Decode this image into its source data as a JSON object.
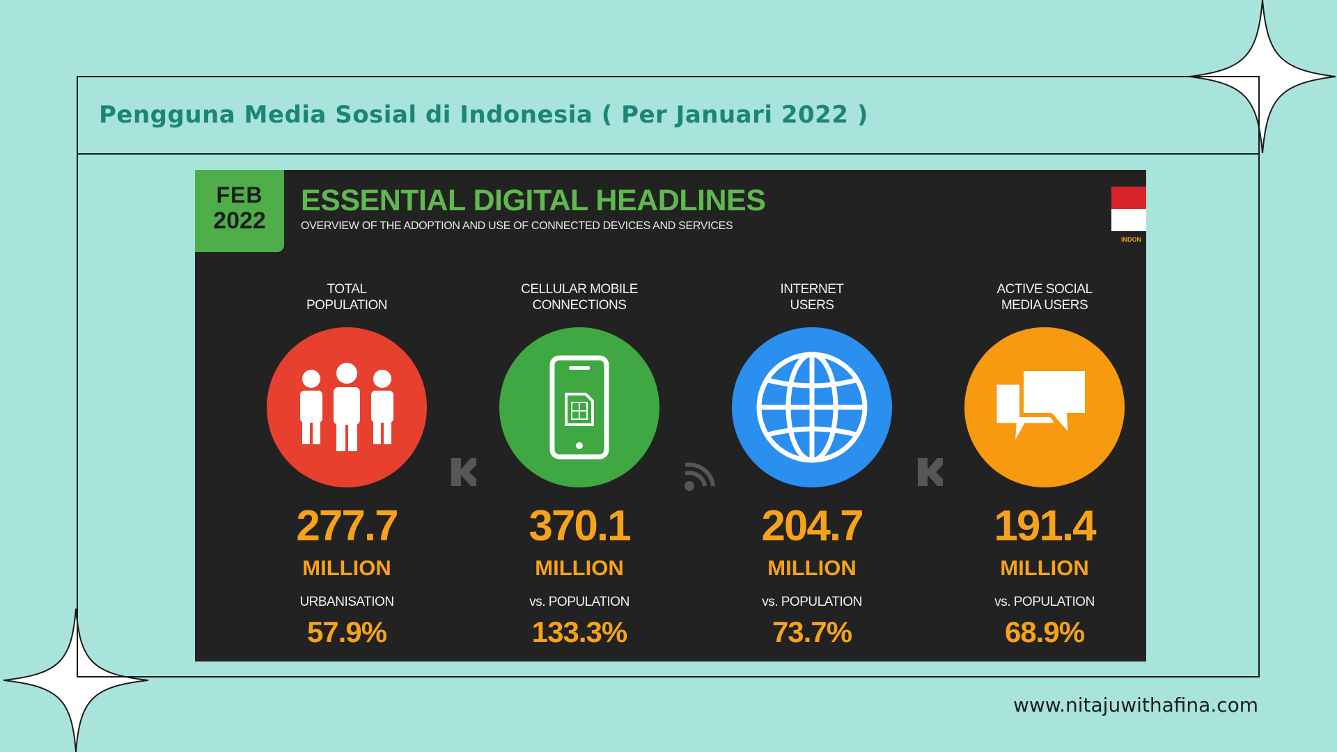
{
  "page_title": "Pengguna Media Sosial di Indonesia ( Per Januari 2022 )",
  "website": "www.nitajuwithafina.com",
  "infographic": {
    "date_month": "FEB",
    "date_year": "2022",
    "headline": "ESSENTIAL DIGITAL HEADLINES",
    "subheadline": "OVERVIEW OF THE ADOPTION AND USE OF CONNECTED DEVICES AND SERVICES",
    "flag_label": "INDON",
    "stats": [
      {
        "label_line1": "TOTAL",
        "label_line2": "POPULATION",
        "icon": "people-icon",
        "color": "#e8402f",
        "value": "277.7",
        "unit": "MILLION",
        "sub_label": "URBANISATION",
        "percent": "57.9%"
      },
      {
        "label_line1": "CELLULAR MOBILE",
        "label_line2": "CONNECTIONS",
        "icon": "mobile-phone-icon",
        "color": "#3fa842",
        "value": "370.1",
        "unit": "MILLION",
        "sub_label": "vs. POPULATION",
        "percent": "133.3%"
      },
      {
        "label_line1": "INTERNET",
        "label_line2": "USERS",
        "icon": "globe-icon",
        "color": "#2b8ff0",
        "value": "204.7",
        "unit": "MILLION",
        "sub_label": "vs. POPULATION",
        "percent": "73.7%"
      },
      {
        "label_line1": "ACTIVE SOCIAL",
        "label_line2": "MEDIA USERS",
        "icon": "chat-bubbles-icon",
        "color": "#f79a0f",
        "value": "191.4",
        "unit": "MILLION",
        "sub_label": "vs. POPULATION",
        "percent": "68.9%"
      }
    ]
  },
  "colors": {
    "background": "#a8e4dc",
    "title": "#1d8478",
    "panel": "#222222",
    "accent_green": "#4fae4a",
    "value_orange": "#f7a21b"
  }
}
